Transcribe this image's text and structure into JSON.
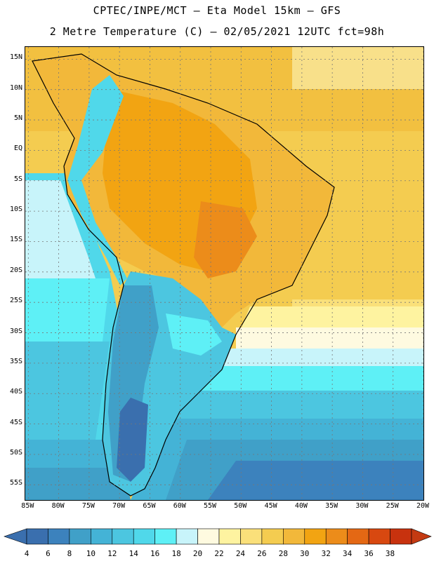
{
  "title": {
    "line1": "CPTEC/INPE/MCT –  Eta Model 15km – GFS",
    "line2": "2 Metre Temperature (C) – 02/05/2021 12UTC fct=98h"
  },
  "map": {
    "lat_ticks": [
      "15N",
      "10N",
      "5N",
      "EQ",
      "5S",
      "10S",
      "15S",
      "20S",
      "25S",
      "30S",
      "35S",
      "40S",
      "45S",
      "50S",
      "55S"
    ],
    "lat_values": [
      15,
      10,
      5,
      0,
      -5,
      -10,
      -15,
      -20,
      -25,
      -30,
      -35,
      -40,
      -45,
      -50,
      -55
    ],
    "lon_ticks": [
      "85W",
      "80W",
      "75W",
      "70W",
      "65W",
      "60W",
      "55W",
      "50W",
      "45W",
      "40W",
      "35W",
      "30W",
      "25W",
      "20W"
    ],
    "lon_values": [
      -85,
      -80,
      -75,
      -70,
      -65,
      -60,
      -55,
      -50,
      -45,
      -40,
      -35,
      -30,
      -25,
      -20
    ],
    "lat_range": [
      -57.5,
      17.0
    ],
    "lon_range": [
      -85.5,
      -20.0
    ],
    "ocean_fields": [
      {
        "name": "north-atlantic-warm",
        "temp": 28
      },
      {
        "name": "equatorial-atlantic",
        "temp": 27
      },
      {
        "name": "south-atlantic-subtropical",
        "temp": 21
      },
      {
        "name": "south-atlantic-mid",
        "temp": 18
      },
      {
        "name": "south-atlantic-cool",
        "temp": 12
      },
      {
        "name": "south-atlantic-cold",
        "temp": 8
      },
      {
        "name": "pacific-tropical",
        "temp": 19
      },
      {
        "name": "pacific-mid",
        "temp": 16
      },
      {
        "name": "pacific-south",
        "temp": 10
      }
    ]
  },
  "colorbar": {
    "labels": [
      "4",
      "6",
      "8",
      "10",
      "12",
      "14",
      "16",
      "18",
      "20",
      "22",
      "24",
      "26",
      "28",
      "30",
      "32",
      "34",
      "36",
      "38"
    ],
    "colors": [
      "#3a6fae",
      "#3c82bd",
      "#40a0c8",
      "#44b3d6",
      "#4cc6e0",
      "#50d8ea",
      "#5ef0f6",
      "#c8f4fa",
      "#fefae0",
      "#fef3a0",
      "#fae07a",
      "#f4cc50",
      "#f2b83a",
      "#f2a412",
      "#ec8c1a",
      "#e46814",
      "#d84810",
      "#c8320e"
    ],
    "left_arrow_color": "#3a6fae",
    "right_arrow_color": "#c43a12"
  }
}
